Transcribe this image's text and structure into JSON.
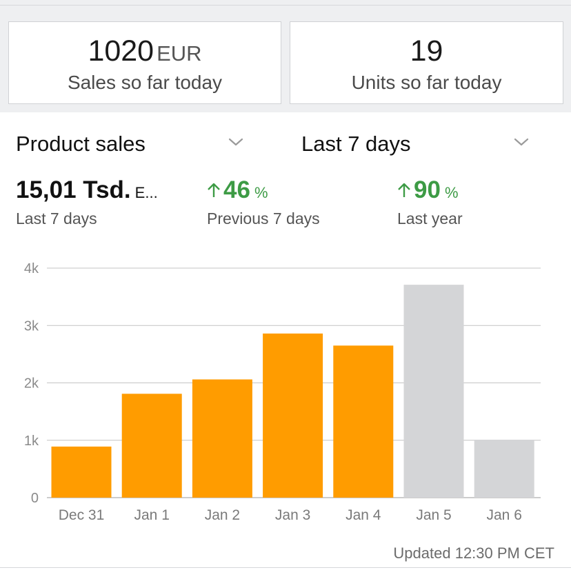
{
  "summary": {
    "sales": {
      "value": "1020",
      "unit": "EUR",
      "caption": "Sales so far today"
    },
    "units": {
      "value": "19",
      "caption": "Units so far today"
    }
  },
  "filters": {
    "metric": {
      "label": "Product sales",
      "icon": "chevron-down-icon"
    },
    "period": {
      "label": "Last 7 days",
      "icon": "chevron-down-icon"
    }
  },
  "metrics": {
    "total": {
      "value": "15,01 Tsd.",
      "suffix": "E...",
      "caption": "Last 7 days"
    },
    "previous": {
      "value": "46",
      "unit": "%",
      "caption": "Previous 7 days",
      "trend": "up",
      "color": "#3d9b45"
    },
    "last_year": {
      "value": "90",
      "unit": "%",
      "caption": "Last year",
      "trend": "up",
      "color": "#3d9b45"
    }
  },
  "chart_data": {
    "type": "bar",
    "categories": [
      "Dec 31",
      "Jan 1",
      "Jan 2",
      "Jan 3",
      "Jan 4",
      "Jan 5",
      "Jan 6"
    ],
    "values": [
      890,
      1810,
      2060,
      2860,
      2650,
      3710,
      1010
    ],
    "highlighted": [
      true,
      true,
      true,
      true,
      true,
      false,
      false
    ],
    "yticks": [
      "0",
      "1k",
      "2k",
      "3k",
      "4k"
    ],
    "ylim": [
      0,
      4000
    ],
    "colors": {
      "highlight": "#ff9c00",
      "muted": "#d4d5d7",
      "grid": "#c4c4c4"
    },
    "grid": true
  },
  "footer": {
    "updated": "Updated 12:30 PM CET"
  }
}
